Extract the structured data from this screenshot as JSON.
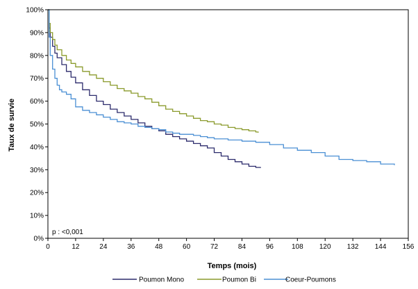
{
  "chart_data": {
    "type": "line",
    "title": "",
    "xlabel": "Temps (mois)",
    "ylabel": "Taux de survie",
    "xlim": [
      0,
      156
    ],
    "ylim": [
      0,
      100
    ],
    "xticks": [
      0,
      12,
      24,
      36,
      48,
      60,
      72,
      84,
      96,
      108,
      120,
      132,
      144,
      156
    ],
    "xtick_labels": [
      "0",
      "12",
      "24",
      "36",
      "48",
      "60",
      "72",
      "84",
      "96",
      "108",
      "120",
      "132",
      "144",
      "156"
    ],
    "yticks": [
      0,
      10,
      20,
      30,
      40,
      50,
      60,
      70,
      80,
      90,
      100
    ],
    "ytick_labels": [
      "0%",
      "10%",
      "20%",
      "30%",
      "40%",
      "50%",
      "60%",
      "70%",
      "80%",
      "90%",
      "100%"
    ],
    "grid": false,
    "legend_position": "bottom",
    "annotation": "p : <0,001",
    "series": [
      {
        "name": "Poumon Mono",
        "color": "#2b2a6b",
        "points": [
          [
            0,
            100
          ],
          [
            0.5,
            92
          ],
          [
            1,
            88
          ],
          [
            2,
            84
          ],
          [
            3,
            81
          ],
          [
            4,
            79
          ],
          [
            6,
            76
          ],
          [
            8,
            73
          ],
          [
            10,
            70.5
          ],
          [
            12,
            68
          ],
          [
            15,
            65
          ],
          [
            18,
            62.5
          ],
          [
            21,
            60
          ],
          [
            24,
            58.5
          ],
          [
            27,
            56.5
          ],
          [
            30,
            55
          ],
          [
            33,
            53.5
          ],
          [
            36,
            52
          ],
          [
            39,
            50.5
          ],
          [
            42,
            49
          ],
          [
            45,
            48
          ],
          [
            48,
            47
          ],
          [
            51,
            45.5
          ],
          [
            54,
            44.5
          ],
          [
            57,
            43.5
          ],
          [
            60,
            42.5
          ],
          [
            63,
            41.5
          ],
          [
            66,
            40.5
          ],
          [
            69,
            39.5
          ],
          [
            72,
            37.5
          ],
          [
            75,
            36
          ],
          [
            78,
            34.5
          ],
          [
            81,
            33.5
          ],
          [
            84,
            32.5
          ],
          [
            87,
            31.5
          ],
          [
            90,
            31
          ],
          [
            92,
            30.8
          ]
        ]
      },
      {
        "name": "Poumon Bi",
        "color": "#8a9a2b",
        "points": [
          [
            0,
            100
          ],
          [
            0.5,
            94
          ],
          [
            1,
            90
          ],
          [
            2,
            87
          ],
          [
            3,
            84.5
          ],
          [
            4,
            82.5
          ],
          [
            6,
            80
          ],
          [
            8,
            78
          ],
          [
            10,
            76.5
          ],
          [
            12,
            75
          ],
          [
            15,
            73
          ],
          [
            18,
            71.5
          ],
          [
            21,
            70
          ],
          [
            24,
            68.5
          ],
          [
            27,
            67
          ],
          [
            30,
            65.5
          ],
          [
            33,
            64.5
          ],
          [
            36,
            63.5
          ],
          [
            39,
            62
          ],
          [
            42,
            61
          ],
          [
            45,
            59.5
          ],
          [
            48,
            58
          ],
          [
            51,
            56.5
          ],
          [
            54,
            55.5
          ],
          [
            57,
            54.5
          ],
          [
            60,
            53.5
          ],
          [
            63,
            52.5
          ],
          [
            66,
            51.5
          ],
          [
            69,
            51
          ],
          [
            72,
            50
          ],
          [
            75,
            49.5
          ],
          [
            78,
            48.5
          ],
          [
            81,
            48
          ],
          [
            84,
            47.5
          ],
          [
            87,
            47
          ],
          [
            90,
            46.5
          ],
          [
            91,
            46.2
          ]
        ]
      },
      {
        "name": "Coeur-Poumons",
        "color": "#4a8fd4",
        "points": [
          [
            0,
            100
          ],
          [
            0.5,
            88
          ],
          [
            1,
            80
          ],
          [
            2,
            74
          ],
          [
            3,
            70
          ],
          [
            4,
            67
          ],
          [
            5,
            65
          ],
          [
            6,
            64
          ],
          [
            8,
            63
          ],
          [
            10,
            61
          ],
          [
            12,
            57.5
          ],
          [
            15,
            56
          ],
          [
            18,
            55
          ],
          [
            21,
            54
          ],
          [
            24,
            53
          ],
          [
            27,
            52
          ],
          [
            30,
            51
          ],
          [
            33,
            50.5
          ],
          [
            36,
            50
          ],
          [
            39,
            49
          ],
          [
            42,
            48.5
          ],
          [
            45,
            48
          ],
          [
            48,
            47.5
          ],
          [
            51,
            46.5
          ],
          [
            54,
            46
          ],
          [
            57,
            45.5
          ],
          [
            60,
            45.5
          ],
          [
            63,
            45
          ],
          [
            66,
            44.5
          ],
          [
            69,
            44
          ],
          [
            72,
            43.5
          ],
          [
            78,
            43
          ],
          [
            84,
            42.5
          ],
          [
            90,
            42
          ],
          [
            96,
            41
          ],
          [
            102,
            39.5
          ],
          [
            108,
            38.5
          ],
          [
            114,
            37.5
          ],
          [
            120,
            36
          ],
          [
            126,
            34.5
          ],
          [
            132,
            34
          ],
          [
            138,
            33.5
          ],
          [
            144,
            32.5
          ],
          [
            150,
            32
          ]
        ]
      }
    ]
  }
}
